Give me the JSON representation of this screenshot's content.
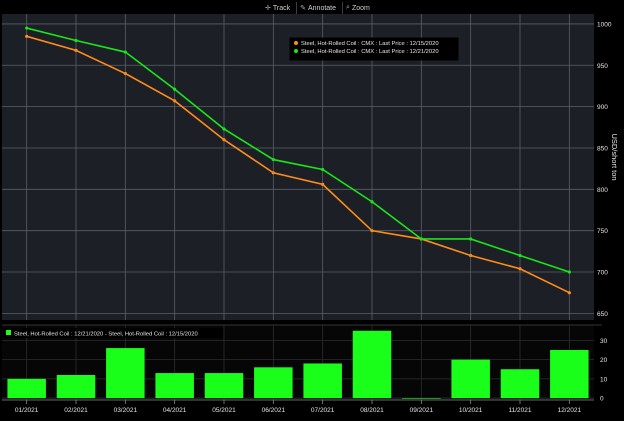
{
  "toolbar": {
    "track_label": "Track",
    "annotate_label": "Annotate",
    "zoom_label": "Zoom",
    "track_icon": "crosshair-icon",
    "annotate_icon": "pencil-icon",
    "zoom_icon": "magnifier-icon"
  },
  "colors": {
    "background": "#000000",
    "plot_background": "#1c2026",
    "grid": "#5a5f66",
    "series_a": "#ff8c1a",
    "series_b": "#19e619",
    "bar": "#19ff19",
    "text": "#e6e6e6"
  },
  "chart_data": [
    {
      "type": "line",
      "categories": [
        "01/2021",
        "02/2021",
        "03/2021",
        "04/2021",
        "05/2021",
        "06/2021",
        "07/2021",
        "08/2021",
        "09/2021",
        "10/2021",
        "11/2021",
        "12/2021"
      ],
      "series": [
        {
          "name": "Steel, Hot-Rolled Coil : CMX : Last Price : 12/15/2020",
          "color": "#ff8c1a",
          "values": [
            985,
            968,
            940,
            907,
            860,
            820,
            806,
            750,
            740,
            720,
            704,
            675
          ]
        },
        {
          "name": "Steel, Hot-Rolled Coil : CMX : Last Price : 12/21/2020",
          "color": "#19e619",
          "values": [
            995,
            980,
            966,
            921,
            873,
            836,
            824,
            785,
            740,
            740,
            720,
            700
          ]
        }
      ],
      "ylabel": "USD/short ton",
      "ylim": [
        642,
        1012
      ],
      "yticks": [
        650,
        700,
        750,
        800,
        850,
        900,
        950,
        1000
      ],
      "grid": true,
      "legend": "top-center"
    },
    {
      "type": "bar",
      "categories": [
        "01/2021",
        "02/2021",
        "03/2021",
        "04/2021",
        "05/2021",
        "06/2021",
        "07/2021",
        "08/2021",
        "09/2021",
        "10/2021",
        "11/2021",
        "12/2021"
      ],
      "series": [
        {
          "name": "Steel, Hot-Rolled Coil : 12/21/2020 - Steel, Hot-Rolled Coil : 12/15/2020",
          "color": "#19ff19",
          "values": [
            10,
            12,
            26,
            13,
            13,
            16,
            18,
            35,
            0,
            20,
            15,
            25
          ]
        }
      ],
      "ylim": [
        -1,
        38
      ],
      "yticks": [
        0,
        10,
        20,
        30
      ],
      "grid": true,
      "legend": "top-left"
    }
  ]
}
